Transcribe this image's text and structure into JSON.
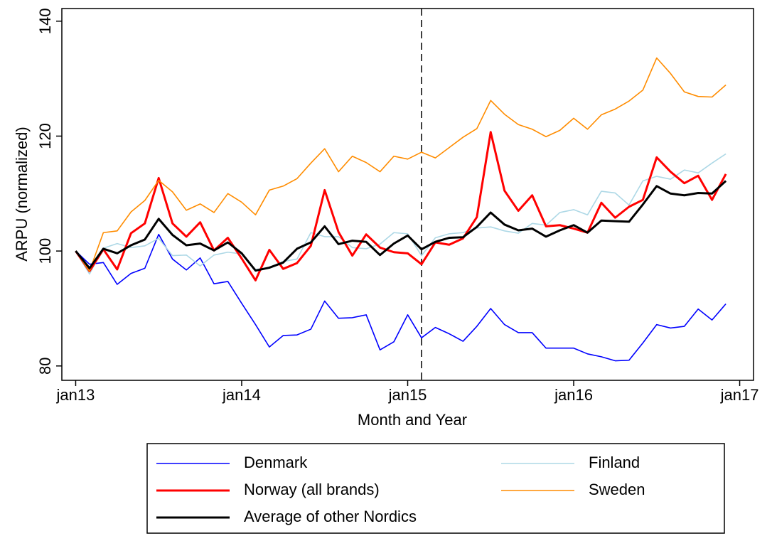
{
  "chart_data": {
    "type": "line",
    "xlabel": "Month and Year",
    "ylabel": "ARPU (normalized)",
    "x": [
      0,
      1,
      2,
      3,
      4,
      5,
      6,
      7,
      8,
      9,
      10,
      11,
      12,
      13,
      14,
      15,
      16,
      17,
      18,
      19,
      20,
      21,
      22,
      23,
      24,
      25,
      26,
      27,
      28,
      29,
      30,
      31,
      32,
      33,
      34,
      35,
      36,
      37,
      38,
      39,
      40,
      41,
      42,
      43,
      44,
      45,
      46,
      47
    ],
    "xlim": [
      -1,
      49
    ],
    "xticks": [
      {
        "value": 0,
        "label": "jan13"
      },
      {
        "value": 12,
        "label": "jan14"
      },
      {
        "value": 24,
        "label": "jan15"
      },
      {
        "value": 36,
        "label": "jan16"
      },
      {
        "value": 48,
        "label": "jan17"
      }
    ],
    "ylim": [
      77.5,
      142.2
    ],
    "yticks": [
      80,
      100,
      120,
      140
    ],
    "vline": 25,
    "grid": false,
    "legend": "bottom",
    "series": [
      {
        "name": "Denmark",
        "color": "#0000ff",
        "width": 1.6,
        "values": [
          100,
          97.7,
          98.0,
          94.2,
          96.1,
          97.0,
          102.9,
          98.6,
          96.7,
          98.8,
          94.3,
          94.7,
          90.9,
          87.2,
          83.3,
          85.3,
          85.4,
          86.4,
          91.3,
          88.3,
          88.4,
          88.9,
          82.8,
          84.2,
          88.9,
          84.9,
          86.7,
          85.6,
          84.3,
          86.9,
          90.0,
          87.2,
          85.8,
          85.8,
          83.1,
          83.1,
          83.1,
          82.1,
          81.6,
          80.9,
          81.0,
          84.0,
          87.2,
          86.6,
          86.9,
          89.9,
          88.0,
          90.8
        ]
      },
      {
        "name": "Finland",
        "color": "#add8e6",
        "width": 1.6,
        "values": [
          100,
          96.0,
          100.5,
          101.3,
          100.6,
          100.9,
          102.2,
          99.2,
          99.3,
          97.4,
          99.3,
          99.8,
          99.5,
          96.8,
          97.1,
          98.2,
          98.6,
          103.2,
          102.5,
          102.5,
          100.6,
          100.4,
          101.2,
          103.2,
          103.0,
          99.2,
          102.3,
          103.0,
          103.2,
          104.0,
          104.2,
          103.5,
          103.1,
          104.8,
          104.5,
          106.7,
          107.2,
          106.3,
          110.4,
          110.1,
          108.0,
          112.2,
          113.0,
          112.5,
          114.1,
          113.6,
          115.3,
          116.9
        ]
      },
      {
        "name": "Norway (all brands)",
        "color": "#ff0000",
        "width": 3,
        "values": [
          100,
          96.5,
          100.3,
          96.8,
          103.1,
          104.8,
          112.7,
          104.8,
          102.5,
          105.0,
          100.1,
          102.3,
          98.7,
          94.9,
          100.2,
          96.9,
          97.9,
          100.9,
          110.6,
          103.3,
          99.2,
          102.9,
          100.6,
          99.8,
          99.6,
          97.7,
          101.5,
          101.1,
          102.2,
          105.9,
          120.7,
          110.5,
          107.0,
          109.7,
          104.3,
          104.5,
          103.9,
          103.2,
          108.4,
          105.8,
          107.7,
          108.9,
          116.3,
          113.8,
          111.8,
          113.1,
          108.9,
          113.4
        ]
      },
      {
        "name": "Sweden",
        "color": "#ff8c00",
        "width": 1.6,
        "values": [
          100,
          96.5,
          103.2,
          103.5,
          106.8,
          108.8,
          112.3,
          110.3,
          107.1,
          108.2,
          106.7,
          110.0,
          108.5,
          106.3,
          110.6,
          111.3,
          112.6,
          115.3,
          117.8,
          113.8,
          116.5,
          115.4,
          113.8,
          116.5,
          116.0,
          117.2,
          116.2,
          118.0,
          119.8,
          121.3,
          126.2,
          123.8,
          122.0,
          121.2,
          119.9,
          121.0,
          123.1,
          121.2,
          123.7,
          124.7,
          126.1,
          128.0,
          133.6,
          130.9,
          127.7,
          126.9,
          126.8,
          128.9
        ]
      },
      {
        "name": "Average of other Nordics",
        "color": "#000000",
        "width": 3,
        "values": [
          100,
          97.0,
          100.4,
          99.6,
          101.0,
          102.0,
          105.6,
          102.8,
          101.0,
          101.3,
          100.1,
          101.5,
          99.6,
          96.6,
          97.1,
          98.0,
          100.4,
          101.5,
          104.3,
          101.2,
          101.8,
          101.6,
          99.3,
          101.3,
          102.7,
          100.3,
          101.6,
          102.3,
          102.4,
          104.2,
          106.7,
          104.6,
          103.6,
          103.9,
          102.5,
          103.6,
          104.5,
          103.2,
          105.3,
          105.2,
          105.1,
          108.1,
          111.3,
          110.0,
          109.7,
          110.1,
          110.0,
          112.2
        ]
      }
    ]
  }
}
